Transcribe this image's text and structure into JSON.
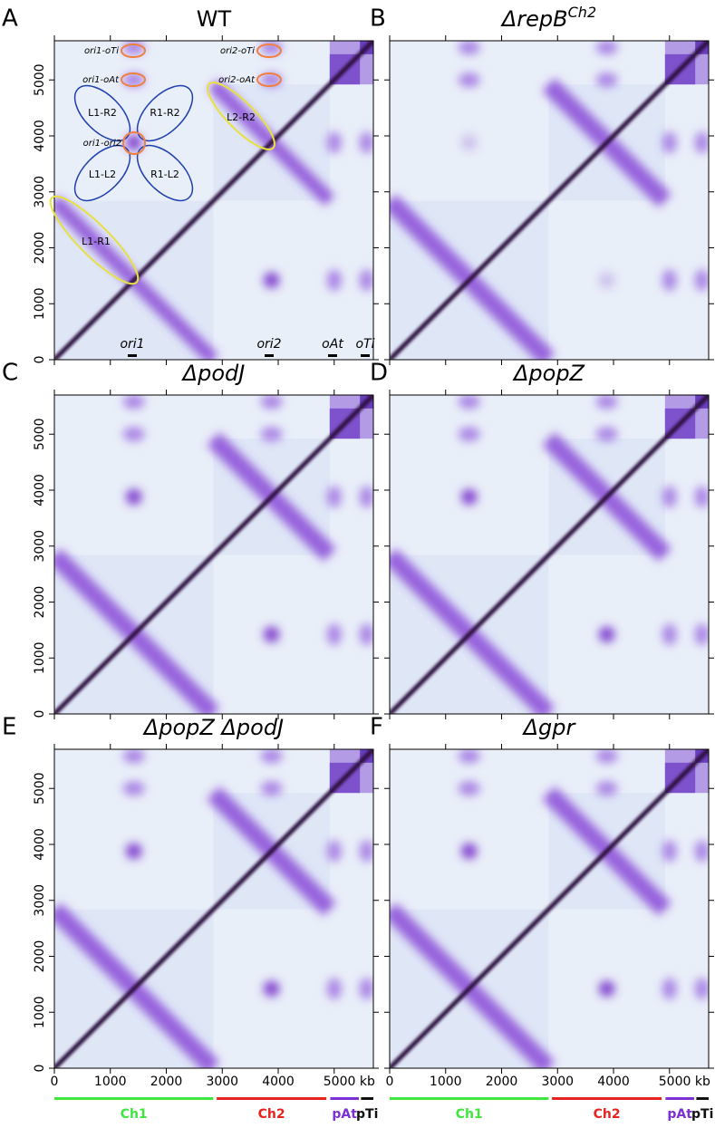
{
  "panels": [
    {
      "letter": "A",
      "title": "WT"
    },
    {
      "letter": "B",
      "title": "ΔrepB",
      "title_sup": "Ch2"
    },
    {
      "letter": "C",
      "title": "ΔpodJ"
    },
    {
      "letter": "D",
      "title": "ΔpopZ"
    },
    {
      "letter": "E",
      "title": "ΔpopZ ΔpodJ"
    },
    {
      "letter": "F",
      "title": "Δgpr"
    }
  ],
  "yticks": [
    0,
    1000,
    2000,
    3000,
    4000,
    5000
  ],
  "xticks": [
    0,
    1000,
    2000,
    3000,
    4000,
    {
      "value": 5000,
      "label": "5000 kb"
    }
  ],
  "annotations": {
    "ori1_oTi": "ori1-oTi",
    "ori1_oAt": "ori1-oAt",
    "ori2_oTi": "ori2-oTi",
    "ori2_oAt": "ori2-oAt",
    "L1_R2": "L1-R2",
    "R1_R2": "R1-R2",
    "ori1_ori2": "ori1-ori2",
    "L1_L2": "L1-L2",
    "R1_L2": "R1-L2",
    "L2_R2": "L2-R2",
    "L1_R1": "L1-R1"
  },
  "loci": [
    "ori1",
    "ori2",
    "oAt",
    "oTi"
  ],
  "replicons": [
    {
      "name": "Ch1",
      "color": "#3ee63e"
    },
    {
      "name": "Ch2",
      "color": "#e8231f"
    },
    {
      "name": "pAt",
      "color": "#7b2fd6"
    },
    {
      "name": "pTi",
      "color": "#111111"
    }
  ]
}
